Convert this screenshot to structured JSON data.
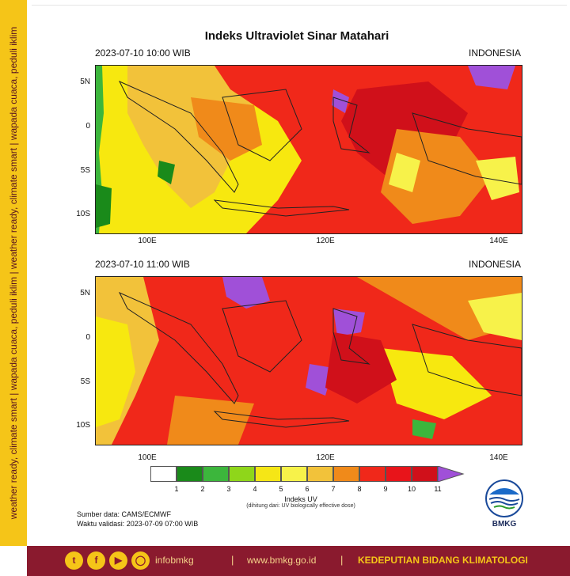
{
  "side_text": "weather ready, climate smart | wapada cuaca, peduli iklim | weather ready, climate smart | wapada cuaca, peduli iklim",
  "title": "Indeks Ultraviolet Sinar Matahari",
  "maps": [
    {
      "datetime": "2023-07-10  10:00 WIB",
      "region": "INDONESIA"
    },
    {
      "datetime": "2023-07-10  11:00 WIB",
      "region": "INDONESIA"
    }
  ],
  "axes": {
    "lat_ticks": [
      "5N",
      "0",
      "5S",
      "10S"
    ],
    "lon_ticks": [
      "100E",
      "120E",
      "140E"
    ]
  },
  "colorbar": {
    "title": "Indeks UV",
    "note": "(dihitung dari: UV biologically effective dose)",
    "labels": [
      "1",
      "2",
      "3",
      "4",
      "5",
      "6",
      "7",
      "8",
      "9",
      "10",
      "11"
    ],
    "colors": [
      "#ffffff",
      "#1a8a1a",
      "#3cb63c",
      "#8fd61a",
      "#f5e616",
      "#f7f24a",
      "#f2c23a",
      "#f08a1a",
      "#f0281a",
      "#e8141a",
      "#d0101a",
      "#a050d8"
    ]
  },
  "source": "Sumber data: CAMS/ECMWF",
  "validity": "Waktu validasi: 2023-07-09 07:00 WIB",
  "logo_text": "BMKG",
  "footer": {
    "social_icons": [
      "twitter-icon",
      "facebook-icon",
      "youtube-icon",
      "instagram-icon"
    ],
    "handle": "infobmkg",
    "website": "www.bmkg.go.id",
    "department": "KEDEPUTIAN BIDANG KLIMATOLOGI",
    "separator": "|"
  }
}
